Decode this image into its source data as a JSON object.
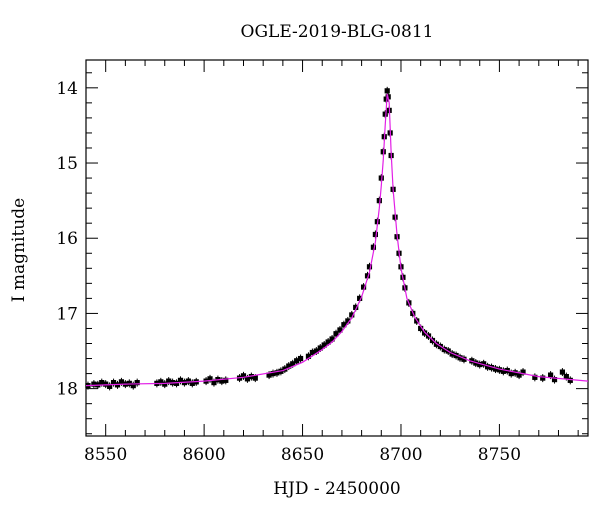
{
  "chart_data": {
    "type": "scatter",
    "title": "OGLE-2019-BLG-0811",
    "xlabel": "HJD - 2450000",
    "ylabel": "I magnitude",
    "xlim": [
      8540,
      8795
    ],
    "ylim": [
      18.63,
      13.63
    ],
    "y_inverted": true,
    "grid": false,
    "x_ticks": [
      8550,
      8600,
      8650,
      8700,
      8750
    ],
    "y_ticks": [
      14,
      15,
      16,
      17,
      18
    ],
    "model_color": "#e21fe6",
    "point_color": "#000000",
    "model_curve": [
      {
        "x": 8540,
        "y": 17.96
      },
      {
        "x": 8560,
        "y": 17.94
      },
      {
        "x": 8580,
        "y": 17.93
      },
      {
        "x": 8600,
        "y": 17.9
      },
      {
        "x": 8620,
        "y": 17.85
      },
      {
        "x": 8640,
        "y": 17.76
      },
      {
        "x": 8650,
        "y": 17.65
      },
      {
        "x": 8660,
        "y": 17.48
      },
      {
        "x": 8665,
        "y": 17.38
      },
      {
        "x": 8670,
        "y": 17.24
      },
      {
        "x": 8675,
        "y": 17.06
      },
      {
        "x": 8680,
        "y": 16.78
      },
      {
        "x": 8684,
        "y": 16.45
      },
      {
        "x": 8687,
        "y": 16.05
      },
      {
        "x": 8689,
        "y": 15.6
      },
      {
        "x": 8690,
        "y": 15.3
      },
      {
        "x": 8691,
        "y": 14.95
      },
      {
        "x": 8692,
        "y": 14.5
      },
      {
        "x": 8693,
        "y": 14.08
      },
      {
        "x": 8694,
        "y": 14.2
      },
      {
        "x": 8695,
        "y": 14.85
      },
      {
        "x": 8696,
        "y": 15.35
      },
      {
        "x": 8698,
        "y": 15.95
      },
      {
        "x": 8700,
        "y": 16.4
      },
      {
        "x": 8703,
        "y": 16.8
      },
      {
        "x": 8707,
        "y": 17.05
      },
      {
        "x": 8712,
        "y": 17.25
      },
      {
        "x": 8718,
        "y": 17.4
      },
      {
        "x": 8725,
        "y": 17.52
      },
      {
        "x": 8735,
        "y": 17.63
      },
      {
        "x": 8750,
        "y": 17.74
      },
      {
        "x": 8770,
        "y": 17.84
      },
      {
        "x": 8795,
        "y": 17.9
      }
    ],
    "points": [
      {
        "x": 8541,
        "y": 17.96
      },
      {
        "x": 8544,
        "y": 17.94
      },
      {
        "x": 8546,
        "y": 17.95
      },
      {
        "x": 8548,
        "y": 17.92
      },
      {
        "x": 8550,
        "y": 17.94
      },
      {
        "x": 8552,
        "y": 17.97
      },
      {
        "x": 8554,
        "y": 17.92
      },
      {
        "x": 8556,
        "y": 17.95
      },
      {
        "x": 8558,
        "y": 17.91
      },
      {
        "x": 8560,
        "y": 17.94
      },
      {
        "x": 8562,
        "y": 17.93
      },
      {
        "x": 8564,
        "y": 17.96
      },
      {
        "x": 8566,
        "y": 17.92
      },
      {
        "x": 8576,
        "y": 17.93
      },
      {
        "x": 8578,
        "y": 17.91
      },
      {
        "x": 8580,
        "y": 17.94
      },
      {
        "x": 8582,
        "y": 17.9
      },
      {
        "x": 8584,
        "y": 17.92
      },
      {
        "x": 8586,
        "y": 17.93
      },
      {
        "x": 8588,
        "y": 17.89
      },
      {
        "x": 8590,
        "y": 17.92
      },
      {
        "x": 8592,
        "y": 17.9
      },
      {
        "x": 8594,
        "y": 17.93
      },
      {
        "x": 8596,
        "y": 17.91
      },
      {
        "x": 8601,
        "y": 17.9
      },
      {
        "x": 8603,
        "y": 17.87
      },
      {
        "x": 8605,
        "y": 17.92
      },
      {
        "x": 8607,
        "y": 17.88
      },
      {
        "x": 8609,
        "y": 17.9
      },
      {
        "x": 8611,
        "y": 17.89
      },
      {
        "x": 8618,
        "y": 17.86
      },
      {
        "x": 8620,
        "y": 17.83
      },
      {
        "x": 8622,
        "y": 17.87
      },
      {
        "x": 8624,
        "y": 17.84
      },
      {
        "x": 8626,
        "y": 17.86
      },
      {
        "x": 8633,
        "y": 17.82
      },
      {
        "x": 8635,
        "y": 17.8
      },
      {
        "x": 8637,
        "y": 17.79
      },
      {
        "x": 8639,
        "y": 17.77
      },
      {
        "x": 8641,
        "y": 17.74
      },
      {
        "x": 8643,
        "y": 17.7
      },
      {
        "x": 8645,
        "y": 17.67
      },
      {
        "x": 8647,
        "y": 17.63
      },
      {
        "x": 8649,
        "y": 17.6
      },
      {
        "x": 8653,
        "y": 17.57
      },
      {
        "x": 8655,
        "y": 17.52
      },
      {
        "x": 8657,
        "y": 17.5
      },
      {
        "x": 8659,
        "y": 17.46
      },
      {
        "x": 8661,
        "y": 17.42
      },
      {
        "x": 8663,
        "y": 17.38
      },
      {
        "x": 8665,
        "y": 17.34
      },
      {
        "x": 8667,
        "y": 17.27
      },
      {
        "x": 8669,
        "y": 17.22
      },
      {
        "x": 8671,
        "y": 17.15
      },
      {
        "x": 8673,
        "y": 17.1
      },
      {
        "x": 8675,
        "y": 17.02
      },
      {
        "x": 8677,
        "y": 16.92
      },
      {
        "x": 8679,
        "y": 16.8
      },
      {
        "x": 8681,
        "y": 16.65
      },
      {
        "x": 8683,
        "y": 16.5
      },
      {
        "x": 8684,
        "y": 16.38
      },
      {
        "x": 8686,
        "y": 16.12
      },
      {
        "x": 8687,
        "y": 15.95
      },
      {
        "x": 8688,
        "y": 15.78
      },
      {
        "x": 8689,
        "y": 15.5
      },
      {
        "x": 8690,
        "y": 15.2
      },
      {
        "x": 8691,
        "y": 14.85
      },
      {
        "x": 8691.5,
        "y": 14.65
      },
      {
        "x": 8692,
        "y": 14.35
      },
      {
        "x": 8692.5,
        "y": 14.15
      },
      {
        "x": 8693,
        "y": 14.04
      },
      {
        "x": 8693.5,
        "y": 14.12
      },
      {
        "x": 8694,
        "y": 14.3
      },
      {
        "x": 8694.5,
        "y": 14.6
      },
      {
        "x": 8695,
        "y": 14.9
      },
      {
        "x": 8696,
        "y": 15.35
      },
      {
        "x": 8697,
        "y": 15.72
      },
      {
        "x": 8698,
        "y": 15.98
      },
      {
        "x": 8699,
        "y": 16.2
      },
      {
        "x": 8700,
        "y": 16.38
      },
      {
        "x": 8701,
        "y": 16.52
      },
      {
        "x": 8702,
        "y": 16.66
      },
      {
        "x": 8704,
        "y": 16.86
      },
      {
        "x": 8706,
        "y": 17.0
      },
      {
        "x": 8708,
        "y": 17.1
      },
      {
        "x": 8710,
        "y": 17.2
      },
      {
        "x": 8712,
        "y": 17.26
      },
      {
        "x": 8714,
        "y": 17.3
      },
      {
        "x": 8716,
        "y": 17.36
      },
      {
        "x": 8718,
        "y": 17.41
      },
      {
        "x": 8720,
        "y": 17.44
      },
      {
        "x": 8722,
        "y": 17.48
      },
      {
        "x": 8724,
        "y": 17.5
      },
      {
        "x": 8726,
        "y": 17.54
      },
      {
        "x": 8728,
        "y": 17.56
      },
      {
        "x": 8730,
        "y": 17.59
      },
      {
        "x": 8732,
        "y": 17.61
      },
      {
        "x": 8736,
        "y": 17.63
      },
      {
        "x": 8738,
        "y": 17.66
      },
      {
        "x": 8740,
        "y": 17.68
      },
      {
        "x": 8742,
        "y": 17.67
      },
      {
        "x": 8744,
        "y": 17.71
      },
      {
        "x": 8746,
        "y": 17.72
      },
      {
        "x": 8748,
        "y": 17.74
      },
      {
        "x": 8750,
        "y": 17.75
      },
      {
        "x": 8752,
        "y": 17.77
      },
      {
        "x": 8754,
        "y": 17.76
      },
      {
        "x": 8756,
        "y": 17.8
      },
      {
        "x": 8758,
        "y": 17.79
      },
      {
        "x": 8760,
        "y": 17.82
      },
      {
        "x": 8762,
        "y": 17.78
      },
      {
        "x": 8768,
        "y": 17.85
      },
      {
        "x": 8772,
        "y": 17.86
      },
      {
        "x": 8776,
        "y": 17.82
      },
      {
        "x": 8778,
        "y": 17.88
      },
      {
        "x": 8782,
        "y": 17.78
      },
      {
        "x": 8784,
        "y": 17.84
      },
      {
        "x": 8786,
        "y": 17.89
      }
    ]
  }
}
